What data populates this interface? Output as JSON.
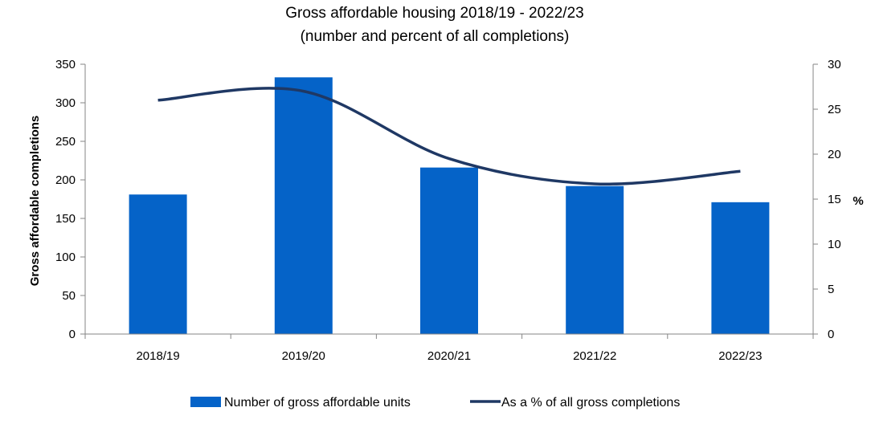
{
  "chart_data": {
    "type": "bar",
    "title": "Gross affordable housing 2018/19 - 2022/23",
    "subtitle": "(number and percent of all completions)",
    "categories": [
      "2018/19",
      "2019/20",
      "2020/21",
      "2021/22",
      "2022/23"
    ],
    "series": [
      {
        "name": "Number of gross affordable units",
        "type": "bar",
        "axis": "left",
        "color": "#0563C8",
        "values": [
          181,
          333,
          216,
          192,
          171
        ]
      },
      {
        "name": "As a % of all gross completions",
        "type": "line",
        "smooth": true,
        "axis": "right",
        "color": "#1F3864",
        "values": [
          26.0,
          27.0,
          19.5,
          16.7,
          18.1
        ]
      }
    ],
    "ylabel": "Gross affordable completions",
    "ylim": [
      0,
      350
    ],
    "yticks": [
      0,
      50,
      100,
      150,
      200,
      250,
      300,
      350
    ],
    "y2label": "%",
    "y2lim": [
      0,
      30
    ],
    "y2ticks": [
      0,
      5,
      10,
      15,
      20,
      25,
      30
    ],
    "grid": false,
    "legend_position": "bottom"
  }
}
